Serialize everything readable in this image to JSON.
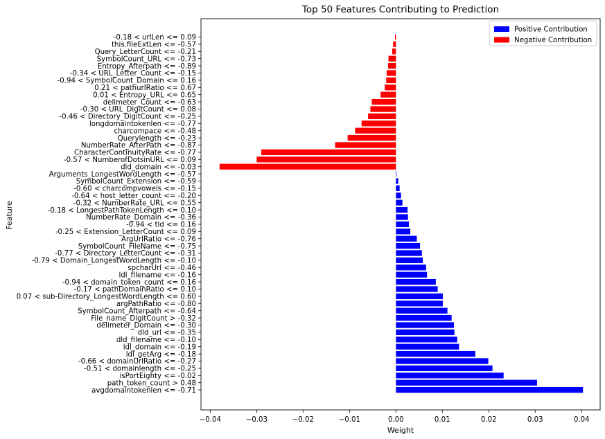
{
  "chart_data": {
    "type": "bar",
    "orientation": "horizontal",
    "title": "Top 50 Features Contributing to Prediction",
    "xlabel": "Weight",
    "ylabel": "Feature",
    "xlim": [
      -0.042,
      0.044
    ],
    "xticks": [
      -0.04,
      -0.03,
      -0.02,
      -0.01,
      0.0,
      0.01,
      0.02,
      0.03,
      0.04
    ],
    "xtick_labels": [
      "−0.04",
      "−0.03",
      "−0.02",
      "−0.01",
      "0.00",
      "0.01",
      "0.02",
      "0.03",
      "0.04"
    ],
    "grid": false,
    "legend_position": "top-right",
    "legend": [
      {
        "label": "Positive Contribution",
        "color": "#0000ff"
      },
      {
        "label": "Negative Contribution",
        "color": "#ff0000"
      }
    ],
    "colors": {
      "positive": "#0000ff",
      "negative": "#ff0000"
    },
    "categories": [
      "-0.18 < urlLen <= 0.09",
      "this.fileExtLen <= -0.57",
      "Query_LetterCount <= -0.21",
      "SymbolCount_URL <= -0.73",
      "Entropy_Afterpath <= -0.89",
      "-0.34 < URL_Letter_Count <= -0.15",
      "-0.94 < SymbolCount_Domain <= 0.16",
      "0.21 < pathurlRatio <= 0.67",
      "0.01 < Entropy_URL <= 0.65",
      "delimeter_Count <= -0.63",
      "-0.30 < URL_DigitCount <= 0.08",
      "-0.46 < Directory_DigitCount <= -0.25",
      "longdomaintokenlen <= -0.77",
      "charcompace <= -0.48",
      "Querylength <= -0.23",
      "NumberRate_AfterPath <= -0.87",
      "CharacterContinuityRate <= -0.77",
      "-0.57 < NumberofDotsinURL <= 0.09",
      "dld_domain <= -0.03",
      "Arguments_LongestWordLength <= -0.57",
      "SymbolCount_Extension <= -0.59",
      "-0.60 < charcompvowels <= -0.15",
      "-0.64 < host_letter_count <= -0.20",
      "-0.32 < NumberRate_URL <= 0.55",
      "-0.18 < LongestPathTokenLength <= 0.10",
      "NumberRate_Domain <= -0.36",
      "-0.94 < tld <= 0.16",
      "-0.25 < Extension_LetterCount <= 0.09",
      "ArgUrlRatio <= -0.76",
      "SymbolCount_FileName <= -0.75",
      "-0.77 < Directory_LetterCount <= -0.31",
      "-0.79 < Domain_LongestWordLength <= -0.10",
      "spcharUrl <= -0.46",
      "ldl_filename <= -0.16",
      "-0.94 < domain_token_count <= 0.16",
      "-0.17 < pathDomainRatio <= 0.10",
      "0.07 < sub-Directory_LongestWordLength <= 0.60",
      "argPathRatio <= -0.80",
      "SymbolCount_Afterpath <= -0.64",
      "File_name_DigitCount > -0.32",
      "delimeter_Domain <= -0.30",
      "dld_url <= -0.35",
      "dld_filename <= -0.10",
      "ldl_domain <= -0.19",
      "ldl_getArg <= -0.18",
      "-0.66 < domainUrlRatio <= -0.27",
      "-0.51 < domainlength <= -0.25",
      "isPortEighty <= -0.02",
      "path_token_count > 0.48",
      "avgdomaintokenlen <= -0.71"
    ],
    "values": [
      -0.0002,
      -0.0006,
      -0.0008,
      -0.0016,
      -0.0017,
      -0.002,
      -0.0021,
      -0.0024,
      -0.0033,
      -0.0052,
      -0.0055,
      -0.006,
      -0.0074,
      -0.0088,
      -0.0104,
      -0.0131,
      -0.029,
      -0.03,
      -0.038,
      0.0001,
      0.0005,
      0.0008,
      0.0011,
      0.0014,
      0.0025,
      0.0026,
      0.0028,
      0.0031,
      0.0045,
      0.0052,
      0.0056,
      0.0058,
      0.0065,
      0.0067,
      0.0086,
      0.009,
      0.0101,
      0.0101,
      0.0111,
      0.012,
      0.0125,
      0.0126,
      0.0132,
      0.0136,
      0.0171,
      0.0199,
      0.0208,
      0.0232,
      0.0304,
      0.0403
    ]
  }
}
